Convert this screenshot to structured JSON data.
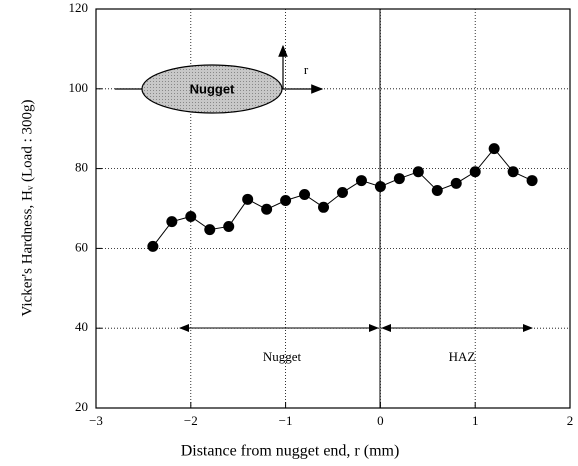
{
  "chart_data": {
    "type": "line",
    "xlabel": "Distance from nugget end, r  (mm)",
    "ylabel": "Vicker's Hardness, Hᵥ (Load : 300g)",
    "x": [
      -2.4,
      -2.2,
      -2.0,
      -1.8,
      -1.6,
      -1.4,
      -1.2,
      -1.0,
      -0.8,
      -0.6,
      -0.4,
      -0.2,
      0,
      0.2,
      0.4,
      0.6,
      0.8,
      1.0,
      1.2,
      1.4,
      1.6
    ],
    "values": [
      60.5,
      66.7,
      68,
      64.7,
      65.5,
      72.3,
      69.8,
      72,
      73.5,
      70.3,
      74,
      77,
      75.5,
      77.5,
      79.2,
      74.5,
      76.3,
      79.2,
      85,
      79.2,
      77
    ],
    "color": "#000000",
    "xlim": [
      -3,
      2
    ],
    "xticks": [
      {
        "value": -3,
        "label": "−3"
      },
      {
        "value": -2,
        "label": "−2"
      },
      {
        "value": -1,
        "label": "−1"
      },
      0,
      1,
      2
    ],
    "ylim": [
      20,
      120
    ],
    "yticks": [
      20,
      40,
      60,
      80,
      100,
      120
    ],
    "grid": true,
    "annotations": {
      "nugget_region": "Nugget",
      "haz_region": "HAZ",
      "inset_label": "Nugget",
      "inset_axis": "r"
    }
  }
}
